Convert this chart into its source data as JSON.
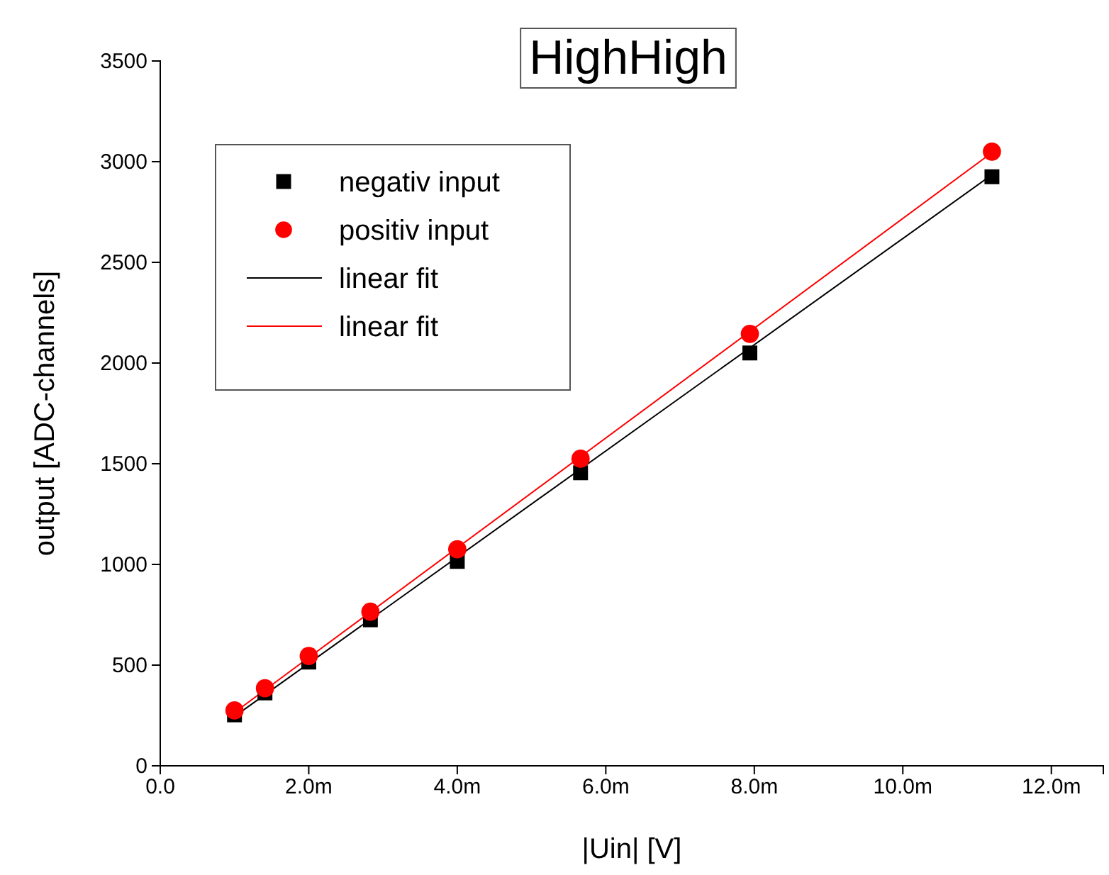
{
  "chart_data": {
    "type": "scatter",
    "title": "HighHigh",
    "xlabel": "|Uin| [V]",
    "ylabel": "output [ADC-channels]",
    "xlim": [
      0,
      12.7
    ],
    "ylim": [
      0,
      3500
    ],
    "xticks": [
      {
        "value": 0,
        "label": "0.0"
      },
      {
        "value": 2,
        "label": "2.0m"
      },
      {
        "value": 4,
        "label": "4.0m"
      },
      {
        "value": 6,
        "label": "6.0m"
      },
      {
        "value": 8,
        "label": "8.0m"
      },
      {
        "value": 10,
        "label": "10.0m"
      },
      {
        "value": 12,
        "label": "12.0m"
      }
    ],
    "yticks": [
      0,
      500,
      1000,
      1500,
      2000,
      2500,
      3000,
      3500
    ],
    "legend": "top left",
    "grid": false,
    "series": [
      {
        "name": "negativ input",
        "marker": "square",
        "color": "#000000",
        "x": [
          1.0,
          1.41,
          2.0,
          2.83,
          4.0,
          5.66,
          7.94,
          11.2
        ],
        "values": [
          253,
          362,
          515,
          725,
          1015,
          1455,
          2050,
          2925
        ]
      },
      {
        "name": "positiv input",
        "marker": "circle",
        "color": "#ff0000",
        "x": [
          1.0,
          1.41,
          2.0,
          2.83,
          4.0,
          5.66,
          7.94,
          11.2
        ],
        "values": [
          275,
          385,
          545,
          765,
          1075,
          1525,
          2145,
          3050
        ]
      },
      {
        "name": "linear fit",
        "type": "line",
        "line_style": "solid",
        "color": "#000000",
        "x": [
          1.0,
          11.2
        ],
        "values": [
          245,
          2935
        ]
      },
      {
        "name": "linear fit",
        "type": "line",
        "line_style": "solid",
        "color": "#ff0000",
        "x": [
          1.0,
          11.2
        ],
        "values": [
          265,
          3045
        ]
      }
    ]
  }
}
